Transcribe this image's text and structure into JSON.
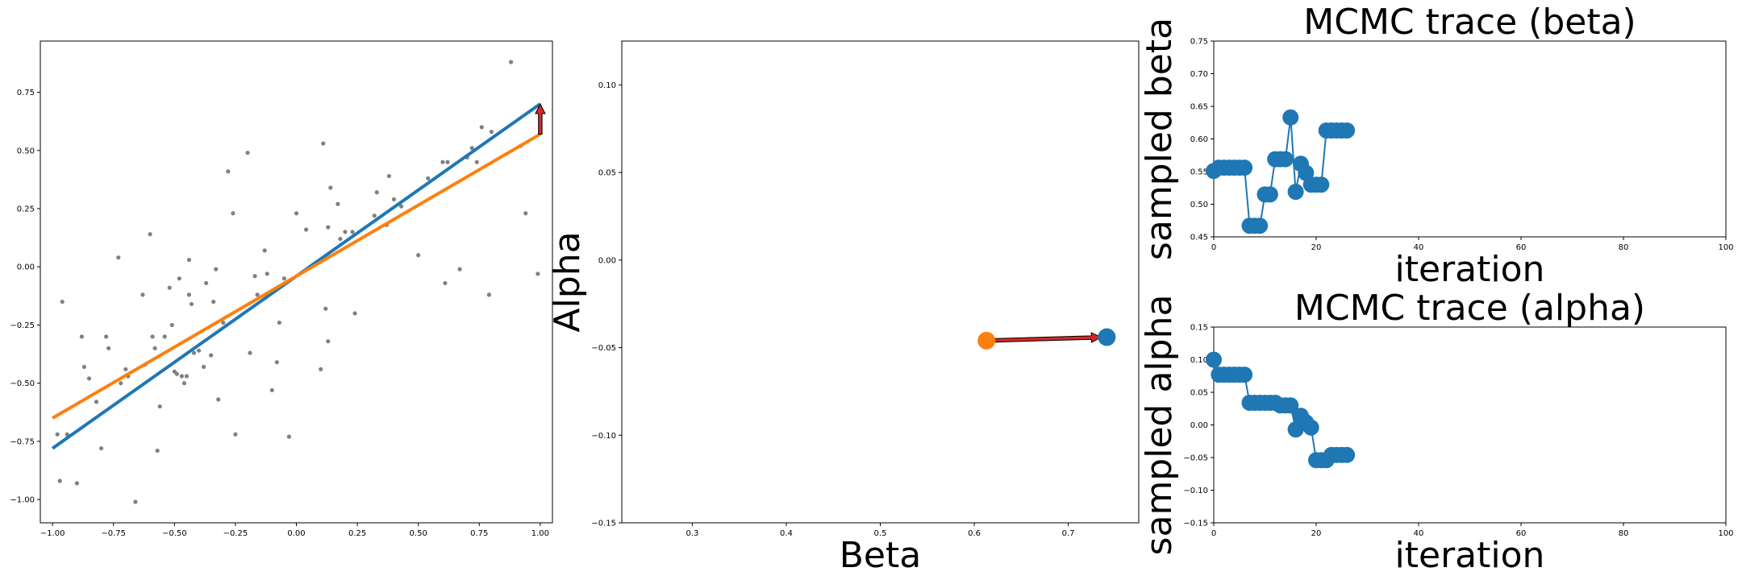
{
  "chart_data": [
    {
      "type": "scatter",
      "xlim": [
        -1.05,
        1.05
      ],
      "ylim": [
        -1.1,
        0.97
      ],
      "xticks": [
        -1.0,
        -0.75,
        -0.5,
        -0.25,
        0.0,
        0.25,
        0.5,
        0.75,
        1.0
      ],
      "xtick_labels": [
        "−1.00",
        "−0.75",
        "−0.50",
        "−0.25",
        "0.00",
        "0.25",
        "0.50",
        "0.75",
        "1.00"
      ],
      "yticks": [
        -1.0,
        -0.75,
        -0.5,
        -0.25,
        0.0,
        0.25,
        0.5,
        0.75
      ],
      "ytick_labels": [
        "−1.00",
        "−0.75",
        "−0.50",
        "−0.25",
        "0.00",
        "0.25",
        "0.50",
        "0.75"
      ],
      "points_color": "#808080",
      "points": [
        [
          -0.98,
          -0.72
        ],
        [
          -0.97,
          -0.92
        ],
        [
          -0.96,
          -0.15
        ],
        [
          -0.94,
          -0.72
        ],
        [
          -0.9,
          -0.93
        ],
        [
          -0.88,
          -0.3
        ],
        [
          -0.87,
          -0.43
        ],
        [
          -0.85,
          -0.48
        ],
        [
          -0.82,
          -0.58
        ],
        [
          -0.8,
          -0.78
        ],
        [
          -0.78,
          -0.3
        ],
        [
          -0.77,
          -0.35
        ],
        [
          -0.73,
          0.04
        ],
        [
          -0.72,
          -0.5
        ],
        [
          -0.7,
          -0.44
        ],
        [
          -0.69,
          -0.47
        ],
        [
          -0.66,
          -1.01
        ],
        [
          -0.63,
          -0.12
        ],
        [
          -0.62,
          -0.42
        ],
        [
          -0.6,
          0.14
        ],
        [
          -0.59,
          -0.3
        ],
        [
          -0.58,
          -0.35
        ],
        [
          -0.57,
          -0.79
        ],
        [
          -0.56,
          -0.6
        ],
        [
          -0.54,
          -0.3
        ],
        [
          -0.52,
          -0.09
        ],
        [
          -0.51,
          -0.25
        ],
        [
          -0.5,
          -0.45
        ],
        [
          -0.49,
          -0.46
        ],
        [
          -0.48,
          -0.05
        ],
        [
          -0.47,
          -0.47
        ],
        [
          -0.46,
          -0.5
        ],
        [
          -0.45,
          -0.47
        ],
        [
          -0.44,
          0.03
        ],
        [
          -0.44,
          -0.12
        ],
        [
          -0.43,
          -0.16
        ],
        [
          -0.42,
          -0.37
        ],
        [
          -0.4,
          -0.36
        ],
        [
          -0.38,
          -0.43
        ],
        [
          -0.37,
          -0.07
        ],
        [
          -0.35,
          -0.38
        ],
        [
          -0.34,
          -0.15
        ],
        [
          -0.33,
          -0.01
        ],
        [
          -0.32,
          -0.57
        ],
        [
          -0.3,
          -0.24
        ],
        [
          -0.28,
          0.41
        ],
        [
          -0.26,
          0.23
        ],
        [
          -0.25,
          -0.72
        ],
        [
          -0.2,
          0.49
        ],
        [
          -0.19,
          -0.37
        ],
        [
          -0.17,
          -0.04
        ],
        [
          -0.16,
          -0.12
        ],
        [
          -0.13,
          0.07
        ],
        [
          -0.12,
          -0.03
        ],
        [
          -0.1,
          -0.53
        ],
        [
          -0.08,
          -0.41
        ],
        [
          -0.07,
          -0.24
        ],
        [
          -0.05,
          -0.05
        ],
        [
          -0.03,
          -0.73
        ],
        [
          0.0,
          0.23
        ],
        [
          0.04,
          0.16
        ],
        [
          0.1,
          -0.44
        ],
        [
          0.11,
          0.53
        ],
        [
          0.12,
          -0.18
        ],
        [
          0.13,
          0.17
        ],
        [
          0.13,
          -0.32
        ],
        [
          0.14,
          0.34
        ],
        [
          0.17,
          0.27
        ],
        [
          0.18,
          0.12
        ],
        [
          0.2,
          0.15
        ],
        [
          0.23,
          0.15
        ],
        [
          0.24,
          -0.2
        ],
        [
          0.32,
          0.22
        ],
        [
          0.33,
          0.32
        ],
        [
          0.37,
          0.18
        ],
        [
          0.38,
          0.39
        ],
        [
          0.4,
          0.29
        ],
        [
          0.43,
          0.26
        ],
        [
          0.5,
          0.05
        ],
        [
          0.54,
          0.38
        ],
        [
          0.6,
          0.45
        ],
        [
          0.61,
          -0.07
        ],
        [
          0.62,
          0.45
        ],
        [
          0.67,
          -0.01
        ],
        [
          0.7,
          0.47
        ],
        [
          0.72,
          0.51
        ],
        [
          0.74,
          0.45
        ],
        [
          0.76,
          0.6
        ],
        [
          0.79,
          -0.12
        ],
        [
          0.8,
          0.58
        ],
        [
          0.88,
          0.88
        ],
        [
          0.92,
          0.52
        ],
        [
          0.94,
          0.23
        ],
        [
          0.99,
          -0.03
        ]
      ],
      "lines": [
        {
          "color": "#1f77b4",
          "x": [
            -1.0,
            1.0
          ],
          "y": [
            -0.78,
            0.7
          ]
        },
        {
          "color": "#ff7f0e",
          "x": [
            -1.0,
            1.0
          ],
          "y": [
            -0.65,
            0.57
          ]
        }
      ],
      "arrow": {
        "color": "#d62728",
        "x": 1.0,
        "y_from": 0.57,
        "y_to": 0.7
      }
    },
    {
      "type": "scatter",
      "xlabel": "Beta",
      "ylabel": "Alpha",
      "xlim": [
        0.225,
        0.775
      ],
      "ylim": [
        -0.15,
        0.125
      ],
      "xticks": [
        0.3,
        0.4,
        0.5,
        0.6,
        0.7
      ],
      "xtick_labels": [
        "0.3",
        "0.4",
        "0.5",
        "0.6",
        "0.7"
      ],
      "yticks": [
        -0.15,
        -0.1,
        -0.05,
        0.0,
        0.05,
        0.1
      ],
      "ytick_labels": [
        "−0.15",
        "−0.10",
        "−0.05",
        "0.00",
        "0.05",
        "0.10"
      ],
      "points": [
        {
          "beta": 0.613,
          "alpha": -0.046,
          "color": "#ff7f0e"
        },
        {
          "beta": 0.741,
          "alpha": -0.044,
          "color": "#1f77b4"
        }
      ],
      "arrow": {
        "color": "#d62728",
        "from": [
          0.613,
          -0.046
        ],
        "to": [
          0.741,
          -0.044
        ]
      }
    },
    {
      "type": "line",
      "title": "MCMC trace (beta)",
      "xlabel": "iteration",
      "ylabel": "sampled beta",
      "xlim": [
        0,
        100
      ],
      "ylim": [
        0.45,
        0.75
      ],
      "xticks": [
        0,
        20,
        40,
        60,
        80,
        100
      ],
      "xtick_labels": [
        "0",
        "20",
        "40",
        "60",
        "80",
        "100"
      ],
      "yticks": [
        0.45,
        0.5,
        0.55,
        0.6,
        0.65,
        0.7,
        0.75
      ],
      "ytick_labels": [
        "0.45",
        "0.50",
        "0.55",
        "0.60",
        "0.65",
        "0.70",
        "0.75"
      ],
      "color": "#1f77b4",
      "x": [
        0,
        1,
        2,
        3,
        4,
        5,
        6,
        7,
        8,
        9,
        10,
        11,
        12,
        13,
        14,
        15,
        16,
        17,
        18,
        19,
        20,
        21,
        22,
        23,
        24,
        25,
        26
      ],
      "y": [
        0.551,
        0.556,
        0.556,
        0.556,
        0.556,
        0.556,
        0.556,
        0.467,
        0.467,
        0.467,
        0.515,
        0.515,
        0.569,
        0.569,
        0.569,
        0.633,
        0.519,
        0.562,
        0.548,
        0.53,
        0.53,
        0.53,
        0.613,
        0.613,
        0.613,
        0.613,
        0.613
      ]
    },
    {
      "type": "line",
      "title": "MCMC trace (alpha)",
      "xlabel": "iteration",
      "ylabel": "sampled alpha",
      "xlim": [
        0,
        100
      ],
      "ylim": [
        -0.15,
        0.15
      ],
      "xticks": [
        0,
        20,
        40,
        60,
        80,
        100
      ],
      "xtick_labels": [
        "0",
        "20",
        "40",
        "60",
        "80",
        "100"
      ],
      "yticks": [
        -0.15,
        -0.1,
        -0.05,
        0.0,
        0.05,
        0.1,
        0.15
      ],
      "ytick_labels": [
        "−0.15",
        "−0.10",
        "−0.05",
        "0.00",
        "0.05",
        "0.10",
        "0.15"
      ],
      "color": "#1f77b4",
      "x": [
        0,
        1,
        2,
        3,
        4,
        5,
        6,
        7,
        8,
        9,
        10,
        11,
        12,
        13,
        14,
        15,
        16,
        17,
        18,
        19,
        20,
        21,
        22,
        23,
        24,
        25,
        26
      ],
      "y": [
        0.1,
        0.077,
        0.077,
        0.077,
        0.077,
        0.077,
        0.077,
        0.034,
        0.034,
        0.034,
        0.034,
        0.034,
        0.034,
        0.03,
        0.03,
        0.03,
        -0.007,
        0.014,
        0.004,
        -0.004,
        -0.054,
        -0.054,
        -0.054,
        -0.046,
        -0.046,
        -0.046,
        -0.046
      ]
    }
  ]
}
